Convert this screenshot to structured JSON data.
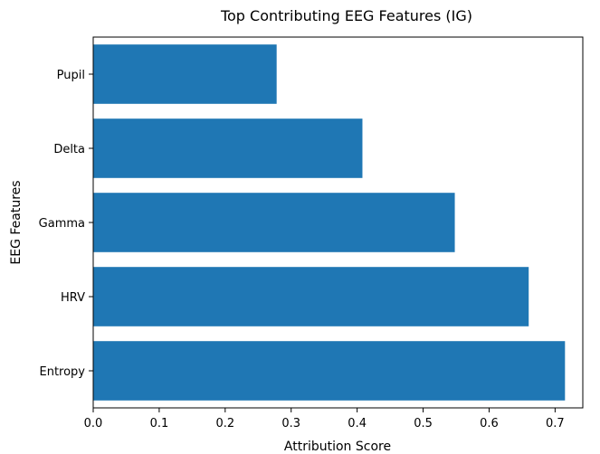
{
  "chart_data": {
    "type": "bar",
    "orientation": "horizontal",
    "title": "Top Contributing EEG Features (IG)",
    "xlabel": "Attribution Score",
    "ylabel": "EEG Features",
    "categories": [
      "Entropy",
      "HRV",
      "Gamma",
      "Delta",
      "Pupil"
    ],
    "values": [
      0.715,
      0.66,
      0.548,
      0.408,
      0.278
    ],
    "xlim": [
      0,
      0.742
    ],
    "xticks": [
      0.0,
      0.1,
      0.2,
      0.3,
      0.4,
      0.5,
      0.6,
      0.7
    ],
    "xtick_labels": [
      "0.0",
      "0.1",
      "0.2",
      "0.3",
      "0.4",
      "0.5",
      "0.6",
      "0.7"
    ],
    "grid": false,
    "bar_color": "#1f77b4"
  }
}
